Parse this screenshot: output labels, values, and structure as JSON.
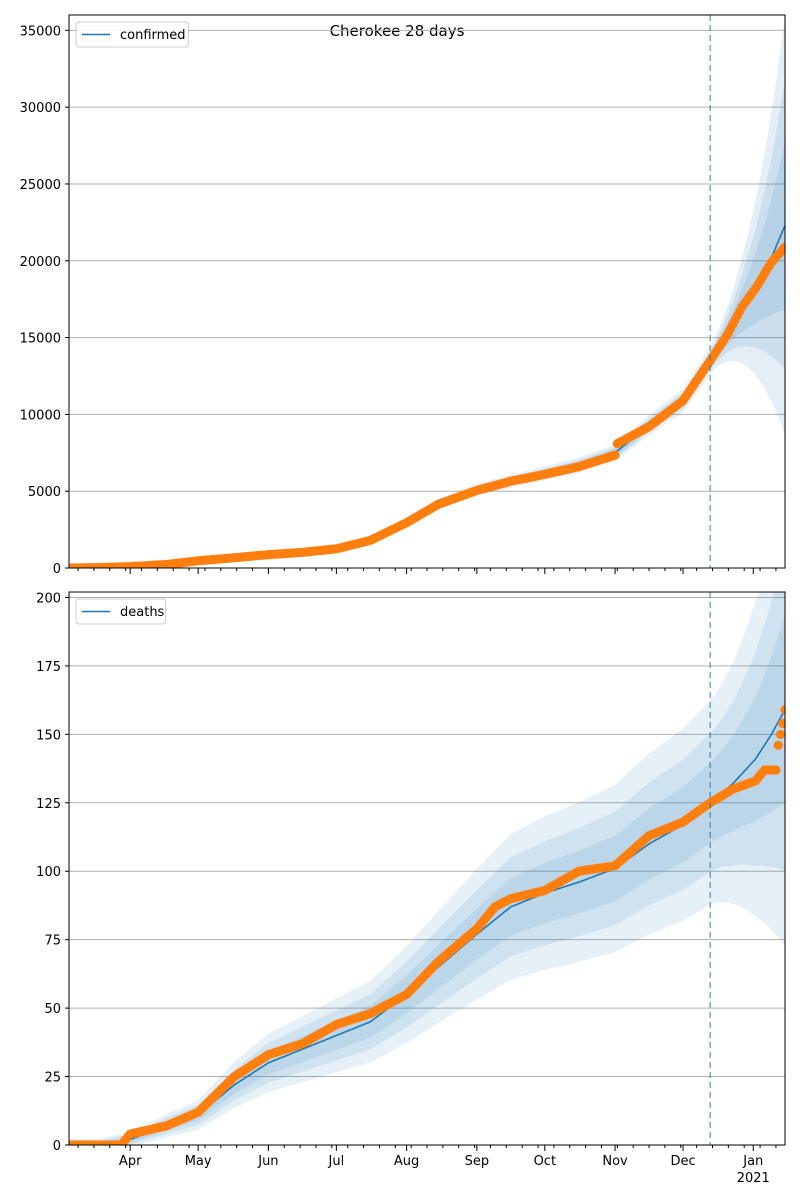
{
  "title": "Cherokee 28 days",
  "colors": {
    "line": "#1f77b4",
    "points": "#ff7f0e",
    "band": "#1f77b4",
    "grid": "#b0b0b0"
  },
  "x_ticks": [
    {
      "label": "Apr",
      "day": 14
    },
    {
      "label": "May",
      "day": 44
    },
    {
      "label": "Jun",
      "day": 75
    },
    {
      "label": "Jul",
      "day": 105
    },
    {
      "label": "Aug",
      "day": 136
    },
    {
      "label": "Sep",
      "day": 167
    },
    {
      "label": "Oct",
      "day": 197
    },
    {
      "label": "Nov",
      "day": 228
    },
    {
      "label": "Dec",
      "day": 258
    },
    {
      "label": "Jan",
      "day": 289
    }
  ],
  "year_label": "2021",
  "x_range": [
    -13,
    303
  ],
  "forecast_start_day": 270,
  "chart_data": [
    {
      "type": "line",
      "legend": "confirmed",
      "ylim": [
        0,
        36000
      ],
      "yticks": [
        0,
        5000,
        10000,
        15000,
        20000,
        25000,
        30000,
        35000
      ],
      "x_axis_labels_visible": false,
      "grid": true,
      "legend_position": "top-left",
      "model_knots": [
        [
          -13,
          0
        ],
        [
          0,
          30
        ],
        [
          14,
          90
        ],
        [
          30,
          230
        ],
        [
          44,
          480
        ],
        [
          60,
          680
        ],
        [
          75,
          870
        ],
        [
          90,
          1010
        ],
        [
          105,
          1230
        ],
        [
          120,
          1800
        ],
        [
          136,
          2950
        ],
        [
          150,
          4150
        ],
        [
          167,
          5100
        ],
        [
          182,
          5650
        ],
        [
          197,
          6150
        ],
        [
          212,
          6700
        ],
        [
          228,
          7500
        ],
        [
          243,
          9300
        ],
        [
          258,
          10900
        ],
        [
          270,
          13500
        ],
        [
          280,
          15800
        ],
        [
          290,
          18200
        ],
        [
          297,
          20200
        ],
        [
          303,
          22300
        ]
      ],
      "observed_knots": [
        [
          -13,
          0
        ],
        [
          0,
          30
        ],
        [
          14,
          90
        ],
        [
          30,
          230
        ],
        [
          44,
          470
        ],
        [
          60,
          670
        ],
        [
          75,
          870
        ],
        [
          90,
          1020
        ],
        [
          105,
          1250
        ],
        [
          120,
          1800
        ],
        [
          136,
          2950
        ],
        [
          150,
          4150
        ],
        [
          167,
          5050
        ],
        [
          182,
          5650
        ],
        [
          197,
          6100
        ],
        [
          212,
          6600
        ],
        [
          228,
          7350
        ],
        [
          229,
          8100
        ],
        [
          243,
          9200
        ],
        [
          258,
          10900
        ],
        [
          270,
          13500
        ],
        [
          278,
          15300
        ],
        [
          284,
          17000
        ],
        [
          290,
          18200
        ],
        [
          297,
          19900
        ],
        [
          303,
          20900
        ]
      ],
      "bands": [
        {
          "factor": 0.06,
          "growth": 0.55,
          "opacity": 0.12
        },
        {
          "factor": 0.04,
          "growth": 0.38,
          "opacity": 0.12
        },
        {
          "factor": 0.025,
          "growth": 0.22,
          "opacity": 0.12
        }
      ]
    },
    {
      "type": "line",
      "legend": "deaths",
      "ylim": [
        0,
        202
      ],
      "yticks": [
        0,
        25,
        50,
        75,
        100,
        125,
        150,
        175,
        200
      ],
      "x_axis_labels_visible": true,
      "grid": true,
      "legend_position": "top-left",
      "model_knots": [
        [
          -13,
          0
        ],
        [
          0,
          0
        ],
        [
          14,
          2
        ],
        [
          30,
          7
        ],
        [
          44,
          11
        ],
        [
          60,
          22
        ],
        [
          75,
          30
        ],
        [
          90,
          35
        ],
        [
          105,
          40
        ],
        [
          120,
          45
        ],
        [
          136,
          55
        ],
        [
          150,
          65
        ],
        [
          167,
          77
        ],
        [
          182,
          87
        ],
        [
          197,
          92
        ],
        [
          212,
          96
        ],
        [
          228,
          101
        ],
        [
          243,
          110
        ],
        [
          258,
          117
        ],
        [
          270,
          125
        ],
        [
          280,
          132
        ],
        [
          290,
          141
        ],
        [
          297,
          150
        ],
        [
          303,
          159
        ]
      ],
      "observed_knots": [
        [
          -13,
          0
        ],
        [
          10,
          0
        ],
        [
          14,
          4
        ],
        [
          30,
          7
        ],
        [
          44,
          12
        ],
        [
          60,
          25
        ],
        [
          75,
          33
        ],
        [
          90,
          37
        ],
        [
          105,
          44
        ],
        [
          120,
          48
        ],
        [
          136,
          55
        ],
        [
          150,
          67
        ],
        [
          167,
          79
        ],
        [
          175,
          87
        ],
        [
          182,
          90
        ],
        [
          197,
          93
        ],
        [
          212,
          100
        ],
        [
          228,
          102
        ],
        [
          243,
          113
        ],
        [
          258,
          118
        ],
        [
          270,
          125
        ],
        [
          280,
          130
        ],
        [
          290,
          133
        ],
        [
          294,
          137
        ],
        [
          299,
          137
        ],
        [
          300,
          146
        ],
        [
          302,
          154
        ],
        [
          303,
          159
        ]
      ],
      "bands": [
        {
          "factor": 0.28,
          "growth": 0.25,
          "opacity": 0.11
        },
        {
          "factor": 0.19,
          "growth": 0.17,
          "opacity": 0.11
        },
        {
          "factor": 0.11,
          "growth": 0.1,
          "opacity": 0.11
        }
      ]
    }
  ]
}
